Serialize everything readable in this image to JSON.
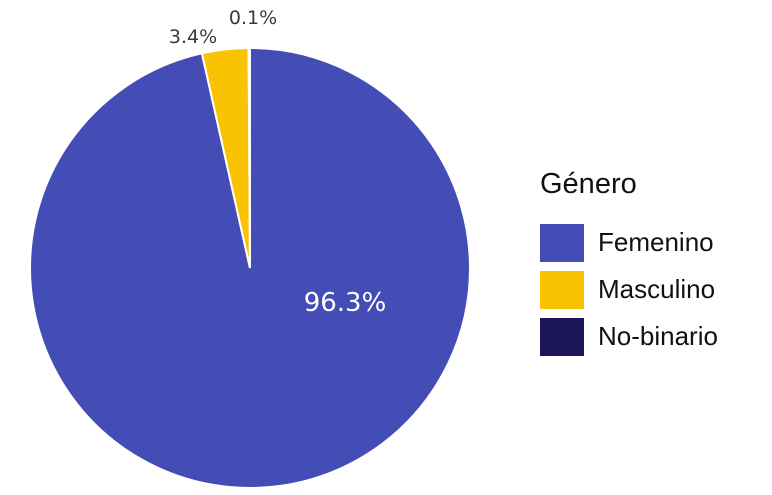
{
  "chart_data": {
    "type": "pie",
    "legend_title": "Género",
    "legend_position": "right",
    "slices": [
      {
        "label": "Femenino",
        "value": 96.3,
        "display": "96.3%",
        "color": "#434DB5"
      },
      {
        "label": "Masculino",
        "value": 3.4,
        "display": "3.4%",
        "color": "#F9C301"
      },
      {
        "label": "No-binario",
        "value": 0.1,
        "display": "0.1%",
        "color": "#1A1657"
      }
    ]
  }
}
